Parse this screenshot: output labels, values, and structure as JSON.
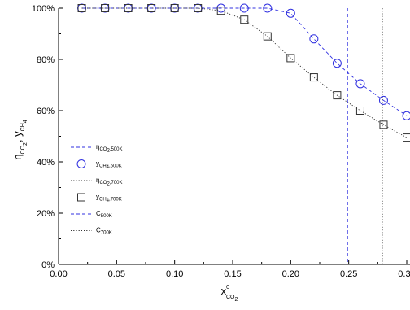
{
  "chart_data": {
    "type": "line",
    "x_axis": {
      "label_main": "x",
      "label_sup": "0",
      "label_sub": "CO",
      "label_sub2": "2",
      "range": [
        0.0,
        0.3
      ],
      "ticks": [
        0.0,
        0.05,
        0.1,
        0.15,
        0.2,
        0.25,
        0.3
      ],
      "tick_labels": [
        "0.00",
        "0.05",
        "0.10",
        "0.15",
        "0.20",
        "0.25",
        "0.30"
      ]
    },
    "y_axis": {
      "label_part1": "η",
      "label_part1_sub": "CO",
      "label_part1_sub2": "2",
      "label_sep": ", ",
      "label_part2": "y",
      "label_part2_sub": "CH",
      "label_part2_sub2": "4",
      "range": [
        0,
        100
      ],
      "ticks": [
        0,
        20,
        40,
        60,
        80,
        100
      ],
      "tick_labels": [
        "0%",
        "20%",
        "40%",
        "60%",
        "80%",
        "100%"
      ]
    },
    "series": [
      {
        "key": "y500",
        "legend_main": "y",
        "legend_sub": "CH",
        "legend_sub2": "4",
        "legend_sub3": ",500K",
        "style": "dash",
        "marker": "circle",
        "color": "#3030e0",
        "x": [
          0.02,
          0.04,
          0.06,
          0.08,
          0.1,
          0.12,
          0.14,
          0.16,
          0.18,
          0.2,
          0.22,
          0.24,
          0.26,
          0.28,
          0.3
        ],
        "y": [
          100,
          100,
          100,
          100,
          100,
          100,
          100,
          100,
          100,
          98,
          88,
          78.5,
          70.5,
          64,
          58
        ]
      },
      {
        "key": "eta500",
        "legend_main": "η",
        "legend_sub": "CO",
        "legend_sub2": "2",
        "legend_sub3": ",500K",
        "style": "dash",
        "marker": "none",
        "color": "#3030e0",
        "x": [
          0.02,
          0.04,
          0.06,
          0.08,
          0.1,
          0.12,
          0.14,
          0.16,
          0.18,
          0.2,
          0.22,
          0.24,
          0.26,
          0.28,
          0.3
        ],
        "y": [
          100,
          100,
          100,
          100,
          100,
          100,
          100,
          100,
          100,
          98,
          88,
          78.5,
          70.5,
          64,
          58
        ]
      },
      {
        "key": "y700",
        "legend_main": "y",
        "legend_sub": "CH",
        "legend_sub2": "4",
        "legend_sub3": ",700K",
        "style": "dot",
        "marker": "square",
        "color": "#333333",
        "x": [
          0.02,
          0.04,
          0.06,
          0.08,
          0.1,
          0.12,
          0.14,
          0.16,
          0.18,
          0.2,
          0.22,
          0.24,
          0.26,
          0.28,
          0.3
        ],
        "y": [
          100,
          100,
          100,
          100,
          100,
          100,
          99,
          95.5,
          89,
          80.5,
          73,
          66,
          60,
          54.5,
          49.5
        ]
      },
      {
        "key": "eta700",
        "legend_main": "η",
        "legend_sub": "CO",
        "legend_sub2": "2",
        "legend_sub3": ",700K",
        "style": "dot",
        "marker": "none",
        "color": "#333333",
        "x": [
          0.02,
          0.04,
          0.06,
          0.08,
          0.1,
          0.12,
          0.14,
          0.16,
          0.18,
          0.2,
          0.22,
          0.24,
          0.26,
          0.28,
          0.3
        ],
        "y": [
          100,
          100,
          100,
          100,
          100,
          100,
          99,
          95.5,
          89,
          80.5,
          73,
          66,
          60,
          54.5,
          49.5
        ]
      }
    ],
    "vertical_lines": [
      {
        "key": "c500",
        "legend_main": "C",
        "legend_sub": "500K",
        "x": 0.249,
        "style": "dash",
        "color": "#3030e0"
      },
      {
        "key": "c700",
        "legend_main": "C",
        "legend_sub": "700K",
        "x": 0.279,
        "style": "dot",
        "color": "#333333"
      }
    ],
    "legend": {
      "placement": "lower-left",
      "order": [
        "eta500",
        "y500",
        "eta700",
        "y700",
        "c500",
        "c700"
      ]
    },
    "grid": false
  }
}
